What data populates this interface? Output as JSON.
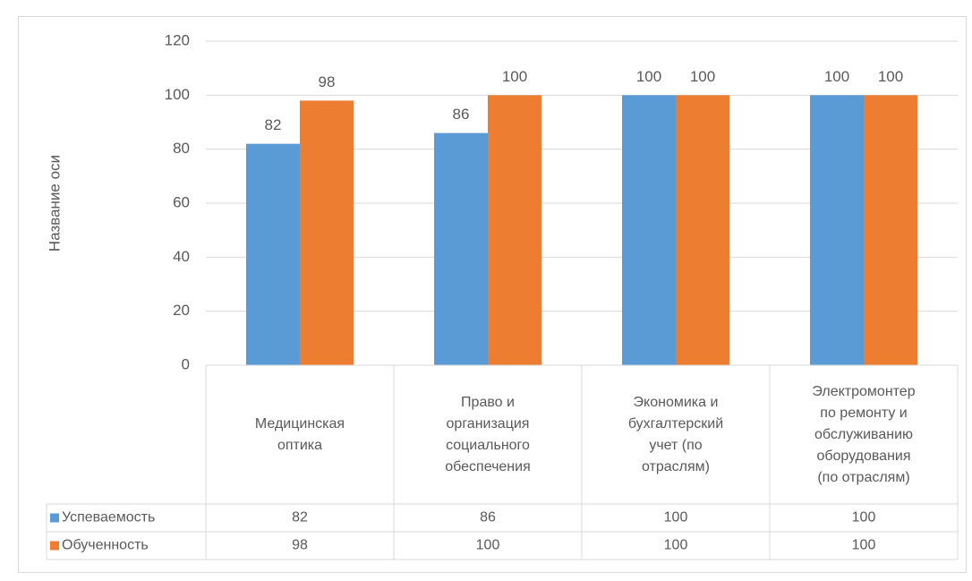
{
  "chart_data": {
    "type": "bar",
    "y_axis_title": "Название оси",
    "categories": [
      "Медицинская оптика",
      "Право и организация социального обеспечения",
      "Экономика и бухгалтерский учет (по отраслям)",
      "Электромонтер по ремонту и обслуживанию оборудования (по отраслям)"
    ],
    "series": [
      {
        "name": "Успеваемость",
        "color": "#5b9bd5",
        "values": [
          82,
          86,
          100,
          100
        ]
      },
      {
        "name": "Обученность",
        "color": "#ed7d31",
        "values": [
          98,
          100,
          100,
          100
        ]
      }
    ],
    "ylim": [
      0,
      120
    ],
    "yticks": [
      0,
      20,
      40,
      60,
      80,
      100,
      120
    ],
    "grid": true,
    "data_table": true
  }
}
